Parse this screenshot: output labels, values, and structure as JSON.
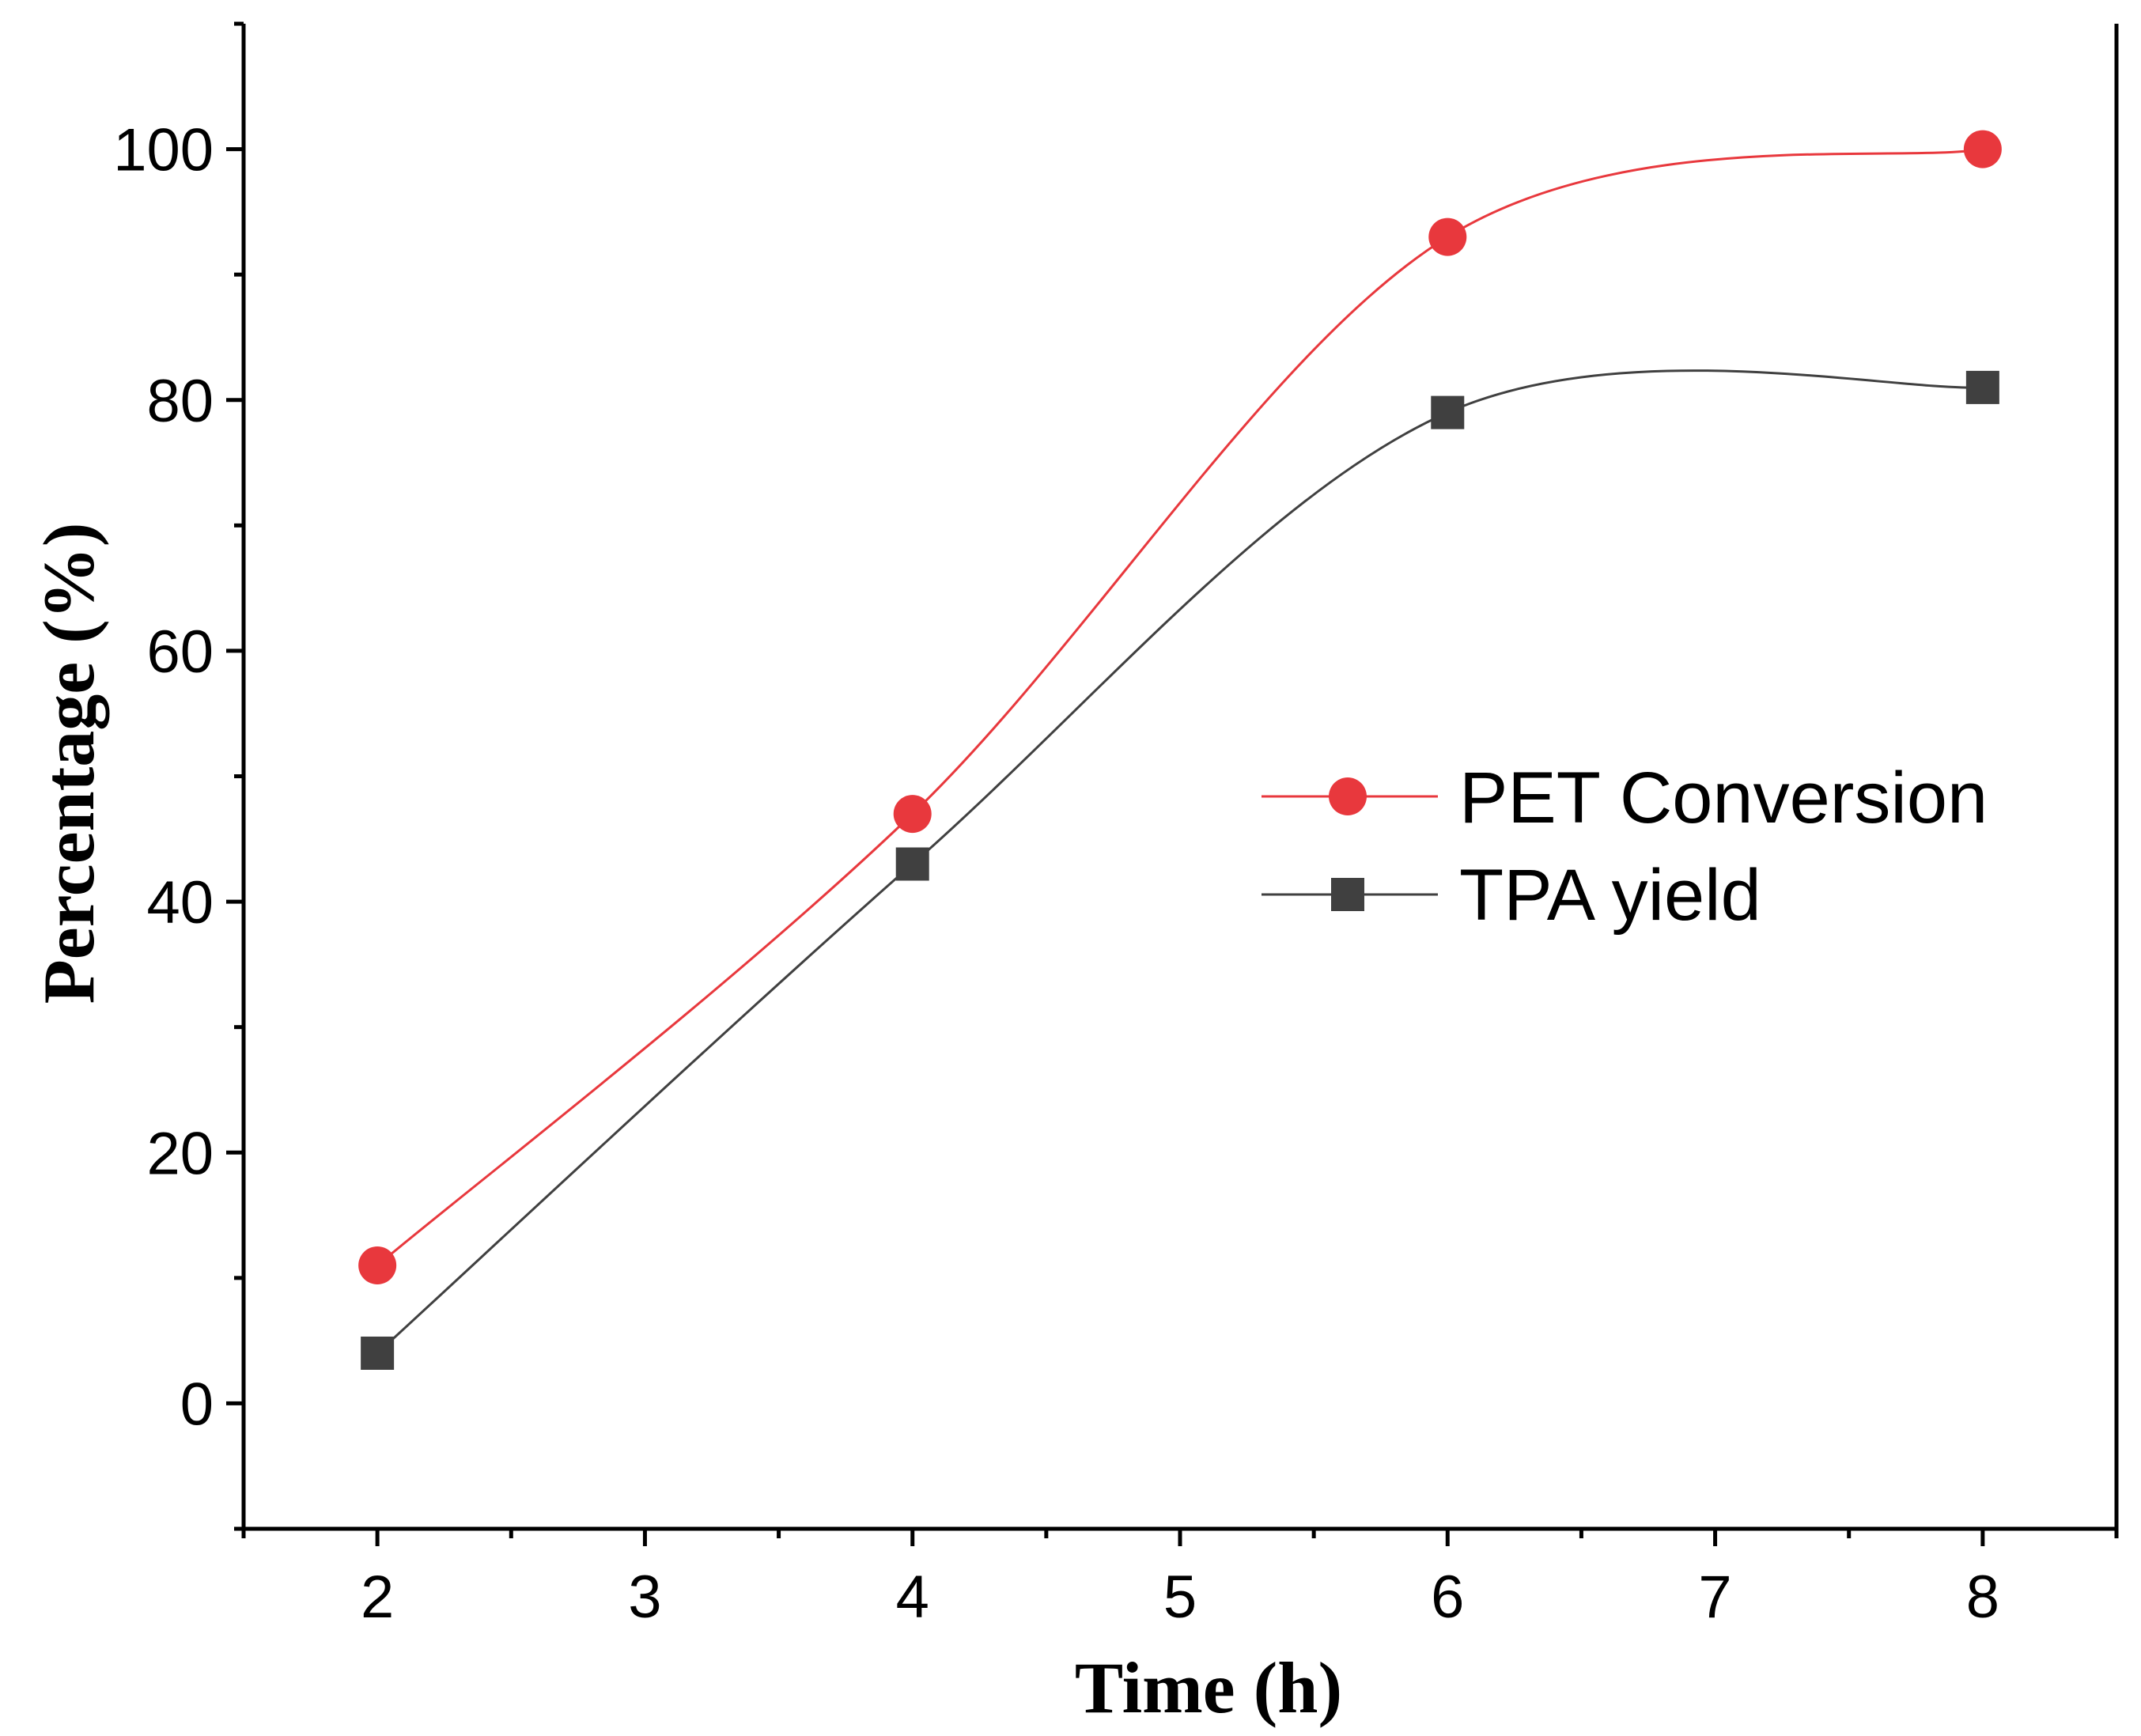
{
  "chart_data": {
    "type": "line",
    "title": "",
    "xlabel": "Time (h)",
    "ylabel": "Percentage (%)",
    "xlim": [
      1.5,
      8.5
    ],
    "ylim": [
      -10,
      110
    ],
    "xticks": [
      2,
      3,
      4,
      5,
      6,
      7,
      8
    ],
    "yticks": [
      0,
      20,
      40,
      60,
      80,
      100
    ],
    "grid": false,
    "legend_position": "center-right",
    "series": [
      {
        "name": "PET Conversion",
        "color": "#e8383d",
        "marker": "circle",
        "x": [
          2,
          4,
          6,
          8
        ],
        "values": [
          11,
          47,
          93,
          100
        ]
      },
      {
        "name": "TPA yield",
        "color": "#404040",
        "marker": "square",
        "x": [
          2,
          4,
          6,
          8
        ],
        "values": [
          4,
          43,
          79,
          81
        ]
      }
    ]
  }
}
